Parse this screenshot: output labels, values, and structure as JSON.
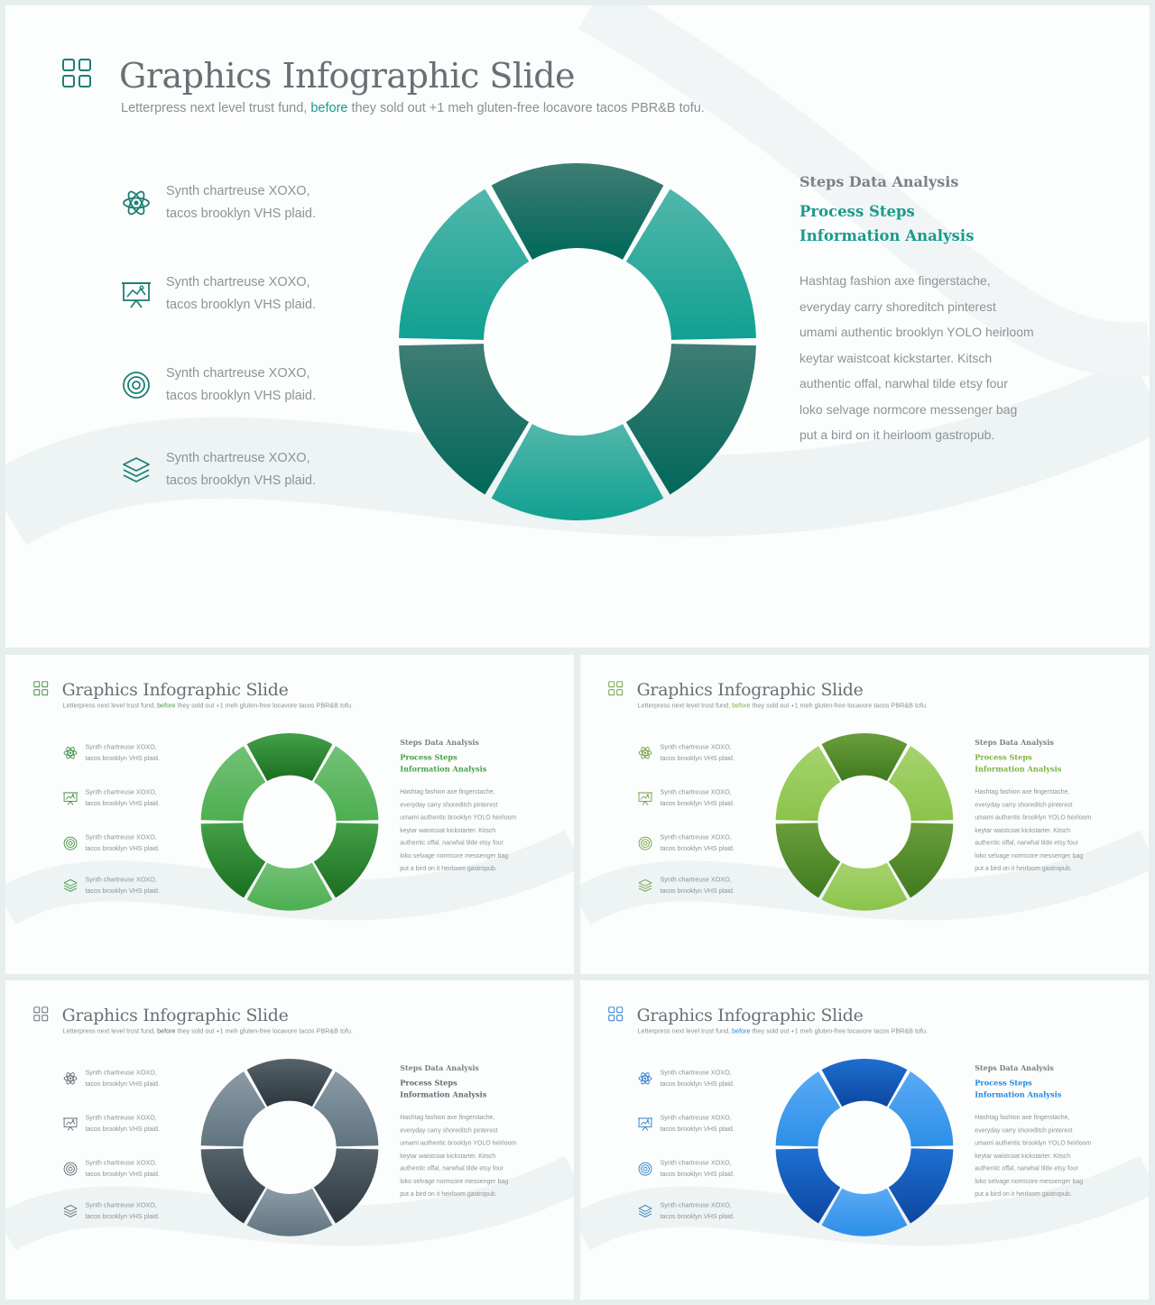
{
  "slide": {
    "title": "Graphics Infographic Slide",
    "subtitle_before": "Letterpress next level trust fund, ",
    "subtitle_accent": "before",
    "subtitle_after": " they sold out +1 meh gluten-free locavore tacos PBR&B tofu.",
    "features": [
      {
        "icon": "atom-icon",
        "line1": "Synth chartreuse XOXO,",
        "line2": "tacos brooklyn VHS plaid."
      },
      {
        "icon": "presentation-board-icon",
        "line1": "Synth chartreuse XOXO,",
        "line2": "tacos brooklyn VHS plaid."
      },
      {
        "icon": "target-icon",
        "line1": "Synth chartreuse XOXO,",
        "line2": "tacos brooklyn VHS plaid."
      },
      {
        "icon": "layers-icon",
        "line1": "Synth chartreuse XOXO,",
        "line2": "tacos brooklyn VHS plaid."
      }
    ],
    "panel": {
      "heading": "Steps Data Analysis",
      "subheading": "Process Steps Information Analysis",
      "body": "Hashtag fashion axe fingerstache, everyday carry shoreditch pinterest umami authentic brooklyn YOLO heirloom keytar waistcoat kickstarter. Kitsch authentic offal, narwhal tilde etsy four loko selvage normcore messenger bag put a bird on it heirloom gastropub."
    }
  },
  "themes": [
    {
      "name": "teal",
      "accent": "#1a9a8c",
      "icon_color": "#1d7f74",
      "dark_top": "#3f7d74",
      "dark_bottom": "#00675a",
      "light_top": "#52b7ab",
      "light_bottom": "#10a091"
    },
    {
      "name": "green",
      "accent": "#43a047",
      "icon_color": "#3f8f44",
      "dark_top": "#43a047",
      "dark_bottom": "#1b6e20",
      "light_top": "#74c177",
      "light_bottom": "#4caf50"
    },
    {
      "name": "lime",
      "accent": "#7cb342",
      "icon_color": "#6f9f3f",
      "dark_top": "#6a9e3c",
      "dark_bottom": "#3f7a1d",
      "light_top": "#a5d36e",
      "light_bottom": "#8bc34a"
    },
    {
      "name": "slate",
      "accent": "#5f6b73",
      "icon_color": "#616c73",
      "dark_top": "#56636b",
      "dark_bottom": "#2c363d",
      "light_top": "#8a9ba5",
      "light_bottom": "#607480"
    },
    {
      "name": "blue",
      "accent": "#1e88e5",
      "icon_color": "#2a7bc6",
      "dark_top": "#1e6fd0",
      "dark_bottom": "#0d47a1",
      "light_top": "#5aaaf5",
      "light_bottom": "#2c8fe8"
    }
  ]
}
